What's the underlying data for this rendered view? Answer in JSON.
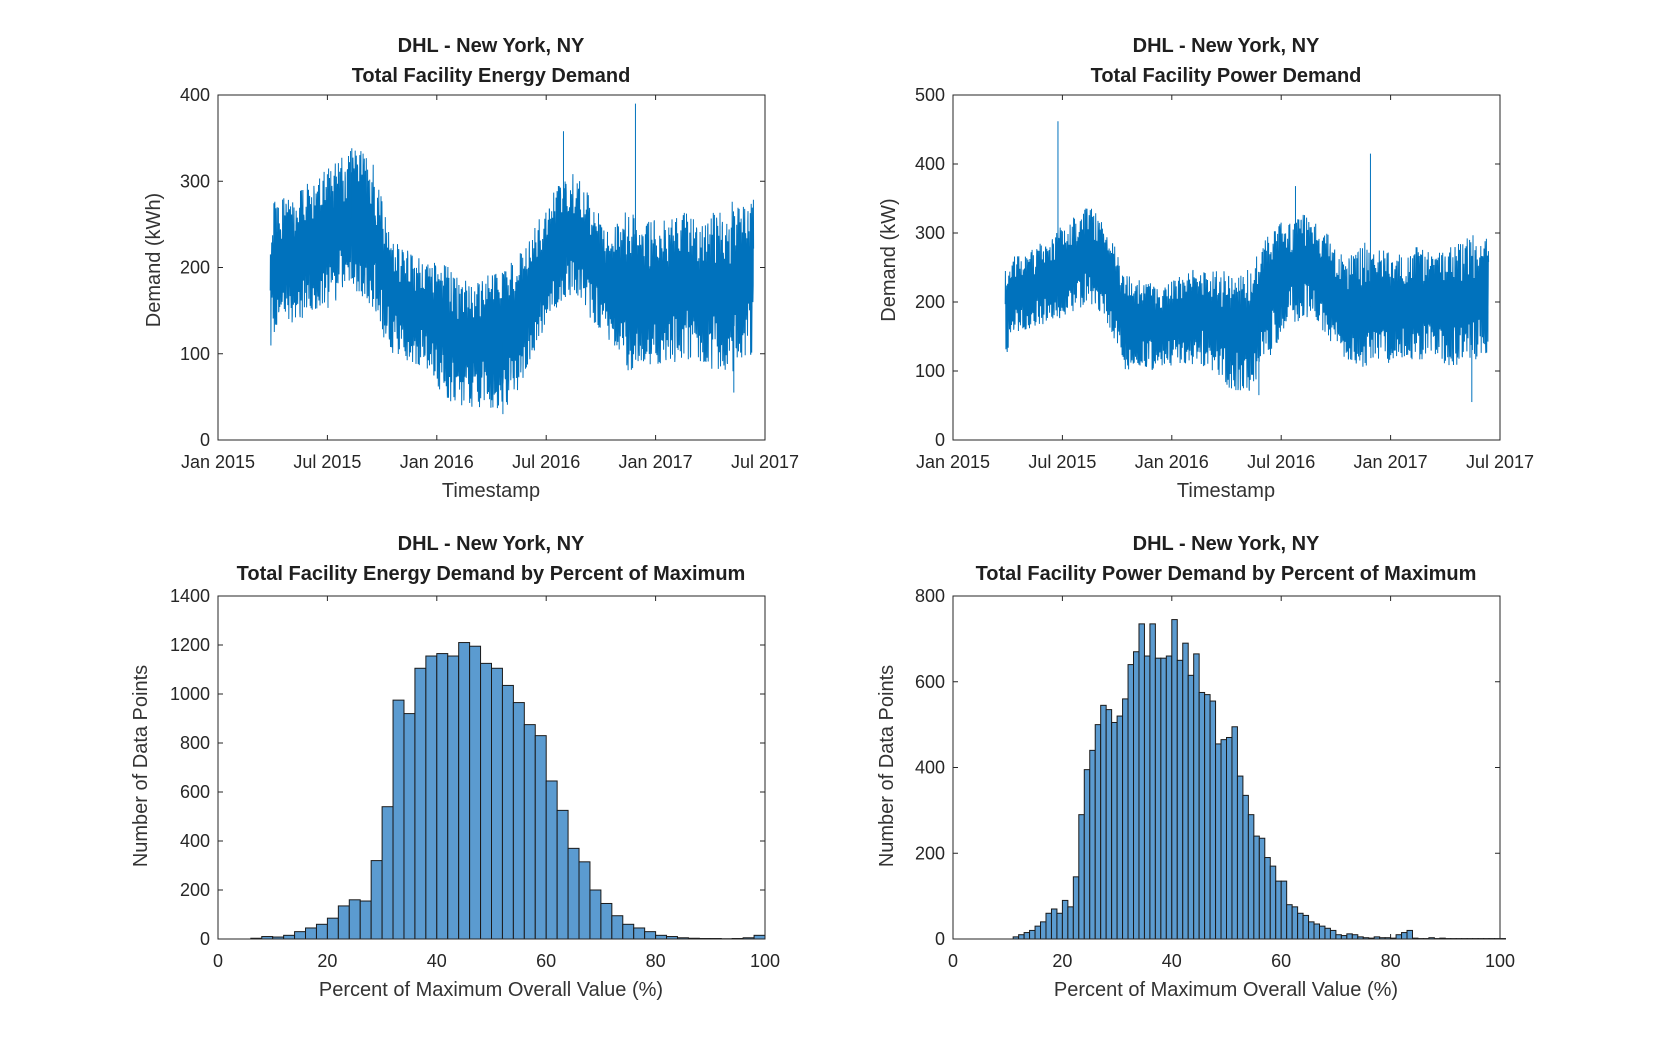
{
  "chart_data": [
    {
      "type": "line",
      "title": "DHL - New York, NY",
      "subtitle": "Total Facility Energy Demand",
      "xlabel": "Timestamp",
      "ylabel": "Demand (kWh)",
      "x_ticks": [
        "Jan 2015",
        "Jul 2015",
        "Jan 2016",
        "Jul 2016",
        "Jan 2017",
        "Jul 2017"
      ],
      "xlim": [
        "2015-01-01",
        "2017-07-01"
      ],
      "ylim": [
        0,
        400
      ],
      "y_ticks": [
        0,
        100,
        200,
        300,
        400
      ],
      "x": [
        "2015-03-29",
        "2015-04-15",
        "2015-05-15",
        "2015-06-15",
        "2015-07-15",
        "2015-08-15",
        "2015-09-15",
        "2015-10-15",
        "2015-11-15",
        "2015-12-15",
        "2016-01-15",
        "2016-02-15",
        "2016-03-15",
        "2016-04-15",
        "2016-05-15",
        "2016-06-15",
        "2016-07-15",
        "2016-08-15",
        "2016-09-15",
        "2016-10-15",
        "2016-11-15",
        "2016-12-15",
        "2017-01-15",
        "2017-02-15",
        "2017-03-15",
        "2017-04-15",
        "2017-05-15",
        "2017-06-12"
      ],
      "y_high": [
        250,
        260,
        270,
        280,
        300,
        320,
        300,
        220,
        200,
        190,
        180,
        170,
        170,
        170,
        190,
        230,
        270,
        290,
        260,
        220,
        240,
        230,
        230,
        240,
        230,
        240,
        250,
        260
      ],
      "y_low": [
        130,
        150,
        160,
        170,
        180,
        200,
        180,
        120,
        110,
        100,
        70,
        60,
        60,
        50,
        80,
        130,
        170,
        190,
        160,
        130,
        100,
        110,
        110,
        120,
        110,
        100,
        110,
        120
      ],
      "peaks": [
        [
          "2015-08-10",
          335
        ],
        [
          "2016-07-30",
          358
        ],
        [
          "2016-11-27",
          390
        ],
        [
          "2017-05-10",
          55
        ],
        [
          "2016-04-20",
          30
        ]
      ]
    },
    {
      "type": "line",
      "title": "DHL - New York, NY",
      "subtitle": "Total Facility Power Demand",
      "xlabel": "Timestamp",
      "ylabel": "Demand (kW)",
      "x_ticks": [
        "Jan 2015",
        "Jul 2015",
        "Jan 2016",
        "Jul 2016",
        "Jan 2017",
        "Jul 2017"
      ],
      "xlim": [
        "2015-01-01",
        "2017-07-01"
      ],
      "ylim": [
        0,
        500
      ],
      "y_ticks": [
        0,
        100,
        200,
        300,
        400,
        500
      ],
      "x": [
        "2015-03-29",
        "2015-04-15",
        "2015-05-15",
        "2015-06-15",
        "2015-07-15",
        "2015-08-15",
        "2015-09-15",
        "2015-10-15",
        "2015-11-15",
        "2015-12-15",
        "2016-01-15",
        "2016-02-15",
        "2016-03-15",
        "2016-04-15",
        "2016-05-15",
        "2016-06-15",
        "2016-07-15",
        "2016-08-15",
        "2016-09-15",
        "2016-10-15",
        "2016-11-15",
        "2016-12-15",
        "2017-01-15",
        "2017-02-15",
        "2017-03-15",
        "2017-04-15",
        "2017-05-15",
        "2017-06-12"
      ],
      "y_high": [
        240,
        250,
        260,
        280,
        300,
        320,
        290,
        220,
        210,
        210,
        220,
        230,
        230,
        210,
        230,
        280,
        300,
        310,
        280,
        240,
        260,
        250,
        250,
        260,
        250,
        260,
        270,
        270
      ],
      "y_low": [
        140,
        170,
        180,
        190,
        200,
        220,
        190,
        120,
        120,
        120,
        130,
        130,
        120,
        90,
        100,
        150,
        190,
        200,
        170,
        140,
        130,
        130,
        140,
        140,
        140,
        130,
        140,
        150
      ],
      "peaks": [
        [
          "2015-06-25",
          462
        ],
        [
          "2016-07-25",
          368
        ],
        [
          "2016-11-27",
          415
        ],
        [
          "2017-05-15",
          55
        ],
        [
          "2016-05-25",
          65
        ]
      ]
    },
    {
      "type": "bar",
      "title": "DHL - New York, NY",
      "subtitle": "Total Facility Energy Demand by Percent of Maximum",
      "xlabel": "Percent of Maximum Overall Value (%)",
      "ylabel": "Number of Data Points",
      "xlim": [
        0,
        100
      ],
      "ylim": [
        0,
        1400
      ],
      "x_ticks": [
        0,
        20,
        40,
        60,
        80,
        100
      ],
      "y_ticks": [
        0,
        200,
        400,
        600,
        800,
        1000,
        1200,
        1400
      ],
      "bin_start": 6,
      "bin_width": 2,
      "values": [
        3,
        10,
        8,
        15,
        30,
        45,
        60,
        85,
        135,
        160,
        155,
        320,
        540,
        975,
        920,
        1105,
        1155,
        1165,
        1155,
        1210,
        1195,
        1125,
        1105,
        1035,
        965,
        875,
        830,
        645,
        525,
        370,
        315,
        200,
        145,
        95,
        60,
        45,
        30,
        15,
        10,
        5,
        3,
        2,
        2,
        1,
        2,
        5,
        15
      ]
    },
    {
      "type": "bar",
      "title": "DHL - New York, NY",
      "subtitle": "Total Facility Power Demand by Percent of Maximum",
      "xlabel": "Percent of Maximum Overall Value (%)",
      "ylabel": "Number of Data Points",
      "xlim": [
        0,
        100
      ],
      "ylim": [
        0,
        800
      ],
      "x_ticks": [
        0,
        20,
        40,
        60,
        80,
        100
      ],
      "y_ticks": [
        0,
        200,
        400,
        600,
        800
      ],
      "bin_start": 11,
      "bin_width": 1,
      "values": [
        5,
        10,
        15,
        20,
        30,
        40,
        60,
        70,
        60,
        90,
        75,
        145,
        290,
        395,
        440,
        500,
        545,
        535,
        505,
        520,
        560,
        640,
        670,
        735,
        660,
        735,
        655,
        655,
        660,
        745,
        650,
        690,
        615,
        665,
        575,
        570,
        555,
        455,
        465,
        470,
        495,
        380,
        335,
        290,
        240,
        235,
        190,
        170,
        135,
        135,
        80,
        75,
        60,
        55,
        40,
        35,
        30,
        25,
        20,
        10,
        8,
        12,
        10,
        5,
        3,
        2,
        5,
        3,
        3,
        2,
        10,
        15,
        20,
        2,
        1,
        1,
        3,
        1,
        2,
        1,
        1,
        1,
        1,
        1,
        1,
        1,
        1,
        1,
        1,
        1
      ]
    }
  ]
}
